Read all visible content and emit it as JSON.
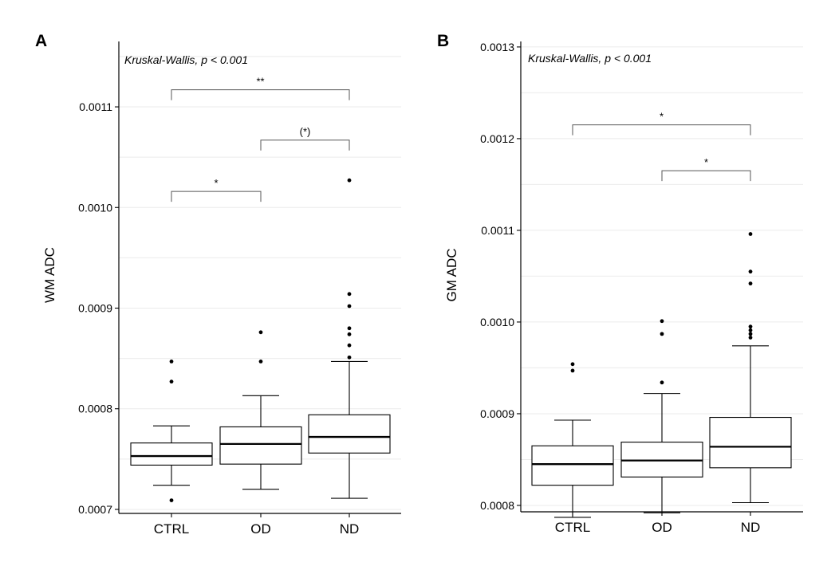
{
  "chart_data": [
    {
      "type": "box",
      "panel_label": "A",
      "ylabel": "WM ADC",
      "xlabel": "",
      "test_label": "Kruskal-Wallis, p < 0.001",
      "categories": [
        "CTRL",
        "OD",
        "ND"
      ],
      "ylim": [
        0.000696,
        0.001165
      ],
      "yticks": [
        0.0007,
        0.0008,
        0.0009,
        0.001,
        0.0011
      ],
      "ytick_labels": [
        "0.0007",
        "0.0008",
        "0.0009",
        "0.0010",
        "0.0011"
      ],
      "boxes": [
        {
          "group": "CTRL",
          "min": 0.000724,
          "q1": 0.000744,
          "median": 0.000753,
          "q3": 0.000766,
          "max": 0.000783,
          "outliers": [
            0.000847,
            0.000827,
            0.000709
          ]
        },
        {
          "group": "OD",
          "min": 0.00072,
          "q1": 0.000745,
          "median": 0.000765,
          "q3": 0.000782,
          "max": 0.000813,
          "outliers": [
            0.000876,
            0.000847
          ]
        },
        {
          "group": "ND",
          "min": 0.000711,
          "q1": 0.000756,
          "median": 0.000772,
          "q3": 0.000794,
          "max": 0.000847,
          "outliers": [
            0.001027,
            0.000914,
            0.000902,
            0.00088,
            0.000874,
            0.000863,
            0.000851
          ]
        }
      ],
      "comparisons": [
        {
          "from": "CTRL",
          "to": "ND",
          "label": "**",
          "y": 0.001117
        },
        {
          "from": "OD",
          "to": "ND",
          "label": "(*)",
          "y": 0.001067
        },
        {
          "from": "CTRL",
          "to": "OD",
          "label": "*",
          "y": 0.001016
        }
      ]
    },
    {
      "type": "box",
      "panel_label": "B",
      "ylabel": "GM ADC",
      "xlabel": "",
      "test_label": "Kruskal-Wallis, p < 0.001",
      "categories": [
        "CTRL",
        "OD",
        "ND"
      ],
      "ylim": [
        0.000793,
        0.001306
      ],
      "yticks": [
        0.0008,
        0.0009,
        0.001,
        0.0011,
        0.0012,
        0.0013
      ],
      "ytick_labels": [
        "0.0008",
        "0.0009",
        "0.0010",
        "0.0011",
        "0.0012",
        "0.0013"
      ],
      "boxes": [
        {
          "group": "CTRL",
          "min": 0.000787,
          "q1": 0.000822,
          "median": 0.000845,
          "q3": 0.000865,
          "max": 0.000893,
          "outliers": [
            0.000954,
            0.000947
          ]
        },
        {
          "group": "OD",
          "min": 0.000792,
          "q1": 0.000831,
          "median": 0.000849,
          "q3": 0.000869,
          "max": 0.000922,
          "outliers": [
            0.001001,
            0.000987,
            0.000934
          ]
        },
        {
          "group": "ND",
          "min": 0.000803,
          "q1": 0.000841,
          "median": 0.000864,
          "q3": 0.000896,
          "max": 0.000974,
          "outliers": [
            0.001096,
            0.001055,
            0.001042,
            0.000995,
            0.000991,
            0.000987,
            0.000983
          ]
        }
      ],
      "comparisons": [
        {
          "from": "CTRL",
          "to": "ND",
          "label": "*",
          "y": 0.001215
        },
        {
          "from": "OD",
          "to": "ND",
          "label": "*",
          "y": 0.001165
        }
      ]
    }
  ]
}
